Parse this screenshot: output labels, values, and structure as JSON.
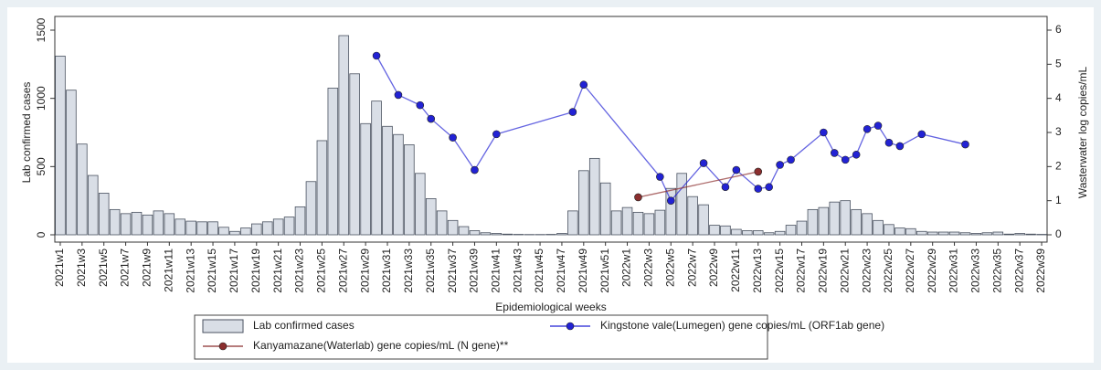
{
  "chart_data": {
    "type": "bar",
    "x_label": "Epidemiological weeks",
    "y_label": "Lab confirmed cases",
    "y2_label": "Wasterwater log copies/mL",
    "categories": [
      "2021w1",
      null,
      "2021w3",
      null,
      "2021w5",
      null,
      "2021w7",
      null,
      "2021w9",
      null,
      "2021w11",
      null,
      "2021w13",
      null,
      "2021w15",
      null,
      "2021w17",
      null,
      "2021w19",
      null,
      "2021w21",
      null,
      "2021w23",
      null,
      "2021w25",
      null,
      "2021w27",
      null,
      "2021w29",
      null,
      "2021w31",
      null,
      "2021w33",
      null,
      "2021w35",
      null,
      "2021w37",
      null,
      "2021w39",
      null,
      "2021w41",
      null,
      "2021w43",
      null,
      "2021w45",
      null,
      "2021w47",
      null,
      "2021w49",
      null,
      "2021w51",
      null,
      "2022w1",
      null,
      "2022w3",
      null,
      "2022w5",
      null,
      "2022w7",
      null,
      "2022w9",
      null,
      "2022w11",
      null,
      "2022w13",
      null,
      "2022w15",
      null,
      "2022w17",
      null,
      "2022w19",
      null,
      "2022w21",
      null,
      "2022w23",
      null,
      "2022w25",
      null,
      "2022w27",
      null,
      "2022w29",
      null,
      "2022w31",
      null,
      "2022w33",
      null,
      "2022w35",
      null,
      "2022w37",
      null,
      "2022w39"
    ],
    "series": [
      {
        "name": "Lab confirmed cases",
        "type": "bar",
        "color": "#d9dee6",
        "values": [
          1310,
          1060,
          665,
          435,
          305,
          185,
          155,
          165,
          145,
          175,
          155,
          115,
          100,
          95,
          95,
          55,
          25,
          50,
          80,
          95,
          115,
          130,
          205,
          390,
          690,
          1075,
          1460,
          1180,
          815,
          980,
          795,
          735,
          660,
          450,
          265,
          175,
          105,
          60,
          30,
          15,
          10,
          5,
          3,
          2,
          2,
          3,
          10,
          175,
          470,
          560,
          380,
          175,
          200,
          165,
          155,
          180,
          340,
          450,
          280,
          220,
          70,
          65,
          40,
          30,
          30,
          15,
          25,
          70,
          100,
          185,
          200,
          240,
          250,
          185,
          155,
          105,
          75,
          50,
          45,
          25,
          20,
          20,
          20,
          15,
          10,
          15,
          20,
          5,
          10,
          5,
          3
        ]
      },
      {
        "name": "Kingstone vale(Lumegen) gene copies/mL (ORF1ab gene)",
        "type": "line",
        "axis": "y2",
        "color": "#2222d4",
        "values": [
          null,
          null,
          null,
          null,
          null,
          null,
          null,
          null,
          null,
          null,
          null,
          null,
          null,
          null,
          null,
          null,
          null,
          null,
          null,
          null,
          null,
          null,
          null,
          null,
          null,
          null,
          null,
          null,
          null,
          5.25,
          null,
          4.1,
          null,
          3.8,
          3.4,
          null,
          2.85,
          null,
          1.9,
          null,
          2.95,
          null,
          null,
          null,
          null,
          null,
          null,
          3.6,
          4.4,
          null,
          null,
          null,
          null,
          null,
          null,
          1.7,
          1.0,
          null,
          null,
          2.1,
          null,
          1.4,
          1.9,
          null,
          1.35,
          1.4,
          2.05,
          2.2,
          null,
          null,
          3.0,
          2.4,
          2.2,
          2.35,
          3.1,
          3.2,
          2.7,
          2.6,
          null,
          2.95,
          null,
          null,
          null,
          2.65,
          null,
          null,
          null,
          null,
          null,
          null,
          null
        ]
      },
      {
        "name": "Kanyamazane(Waterlab) gene copies/mL (N gene)**",
        "type": "line",
        "axis": "y2",
        "color": "#8b2e2e",
        "values": [
          null,
          null,
          null,
          null,
          null,
          null,
          null,
          null,
          null,
          null,
          null,
          null,
          null,
          null,
          null,
          null,
          null,
          null,
          null,
          null,
          null,
          null,
          null,
          null,
          null,
          null,
          null,
          null,
          null,
          null,
          null,
          null,
          null,
          null,
          null,
          null,
          null,
          null,
          null,
          null,
          null,
          null,
          null,
          null,
          null,
          null,
          null,
          null,
          null,
          null,
          null,
          null,
          null,
          1.1,
          null,
          null,
          null,
          null,
          null,
          null,
          null,
          null,
          null,
          null,
          1.85,
          null,
          null,
          null,
          null,
          null,
          null,
          null,
          null,
          null,
          null,
          null,
          null,
          null,
          null,
          null,
          null,
          null,
          null,
          null,
          null,
          null,
          null,
          null,
          null,
          null,
          null
        ]
      }
    ],
    "ylim": [
      0,
      1500
    ],
    "yticks": [
      0,
      500,
      1000,
      1500
    ],
    "y2lim": [
      0,
      6
    ],
    "y2ticks": [
      0,
      1,
      2,
      3,
      4,
      5,
      6
    ]
  }
}
